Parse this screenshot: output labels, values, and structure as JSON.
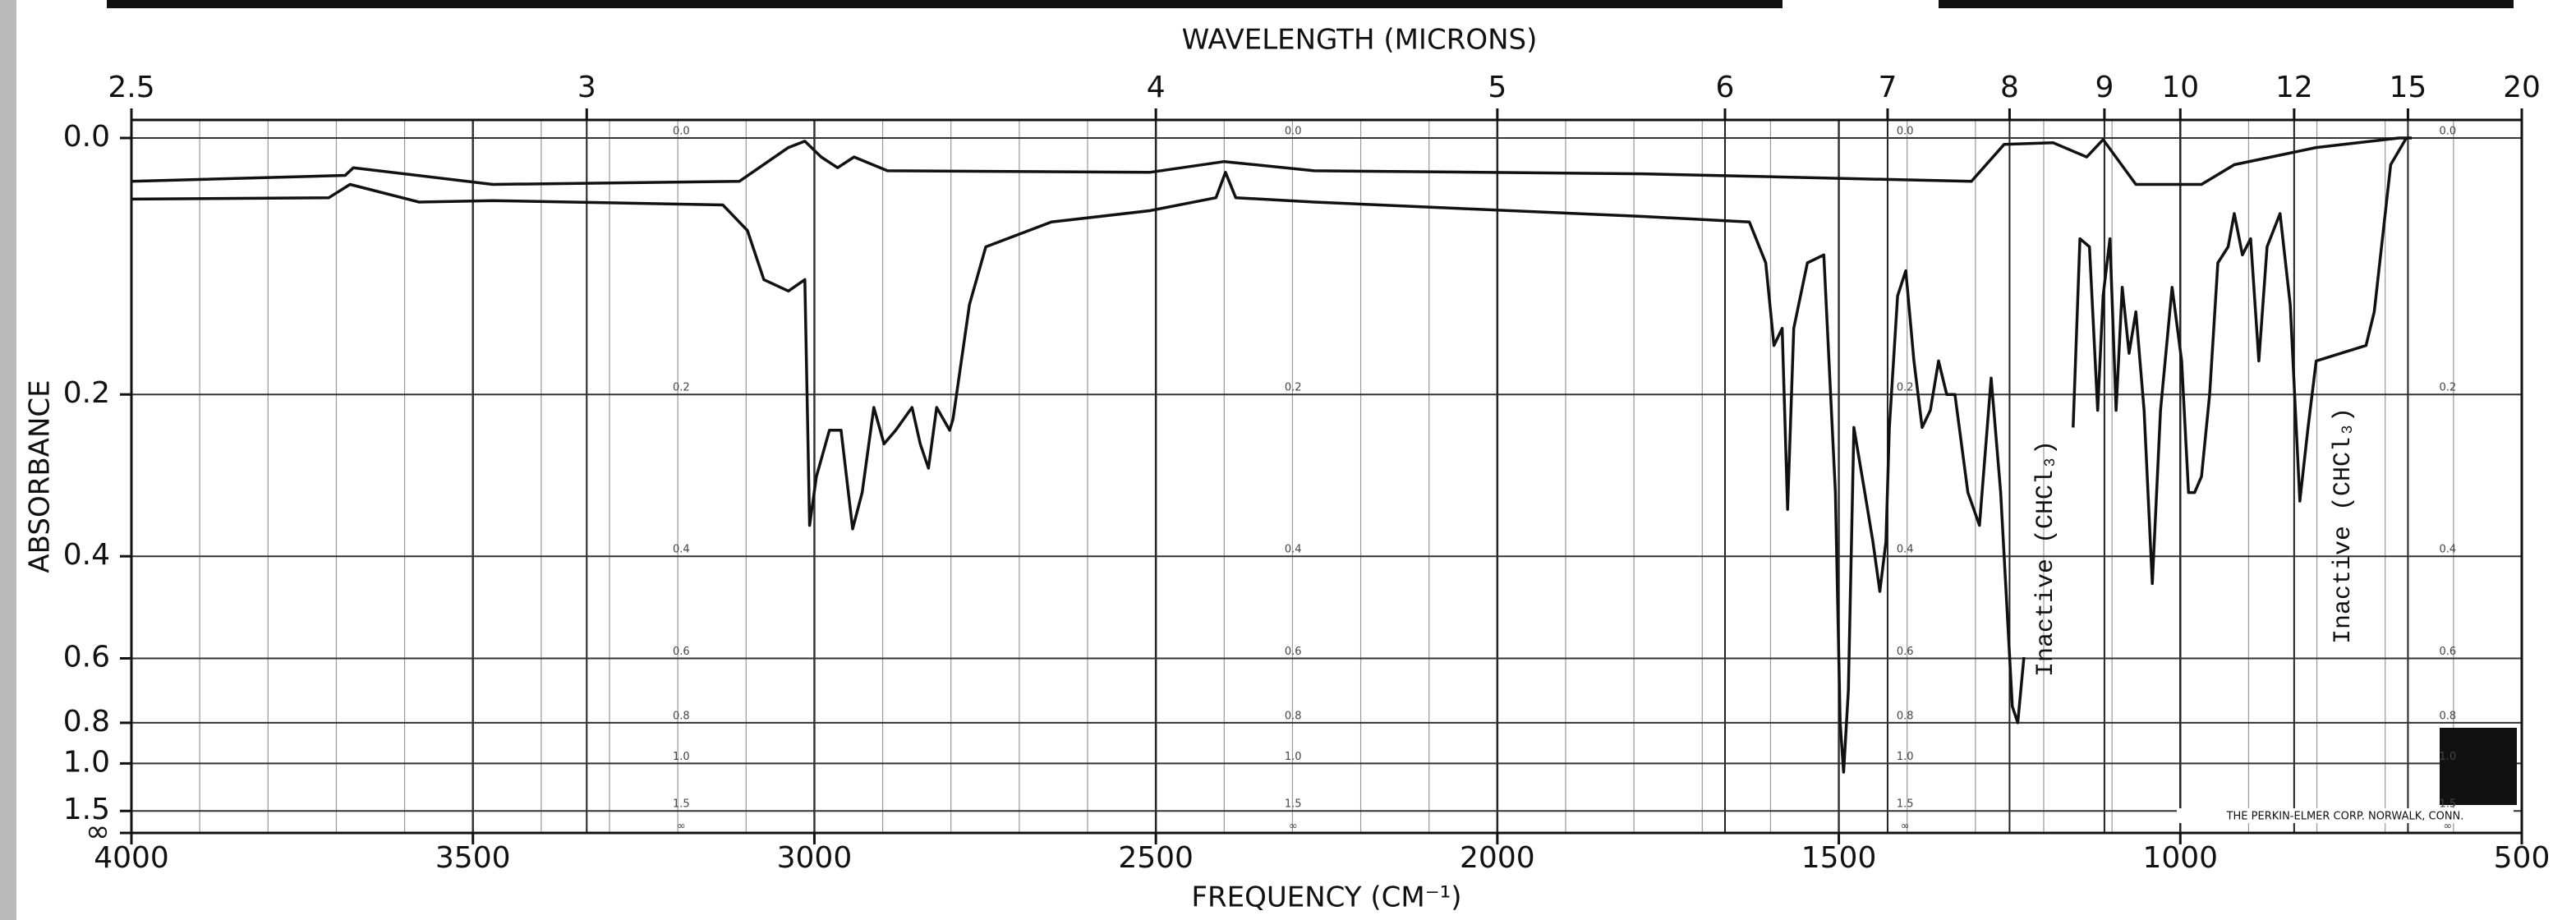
{
  "chart_data": {
    "type": "line",
    "x2label": "WAVELENGTH (MICRONS)",
    "xlabel": "FREQUENCY (CM⁻¹)",
    "ylabel": "ABSORBANCE",
    "xlim": [
      4000,
      500
    ],
    "xticks": [
      4000,
      3500,
      3000,
      2500,
      2000,
      1500,
      1000,
      500
    ],
    "x_minor_step": 100,
    "x2_scale": "reciprocal",
    "x2ticks": [
      2.5,
      3,
      4,
      5,
      6,
      7,
      8,
      9,
      10,
      12,
      15,
      20
    ],
    "y_scale": "transmittance",
    "ylim": [
      0.0,
      {
        "value": null,
        "label": "∞"
      }
    ],
    "yticks": [
      {
        "value": 0.0,
        "label": "0.0"
      },
      0.2,
      0.4,
      0.6,
      0.8,
      {
        "value": 1.0,
        "label": "1.0"
      },
      1.5,
      {
        "value": null,
        "label": "∞"
      }
    ],
    "grid": true,
    "series": [
      {
        "color": "#111111",
        "x": [
          4000,
          3687,
          3675,
          3471,
          3110,
          3038,
          3014,
          2990,
          2966,
          2942,
          2893,
          2509,
          2400,
          2268,
          1787,
          1306,
          1258,
          1186,
          1137,
          1113,
          1065,
          969,
          921,
          801,
          680,
          661
        ],
        "values": [
          0.028,
          0.024,
          0.019,
          0.03,
          0.028,
          0.006,
          0.002,
          0.012,
          0.019,
          0.012,
          0.021,
          0.022,
          0.015,
          0.021,
          0.023,
          0.028,
          0.004,
          0.003,
          0.012,
          0.001,
          0.03,
          0.03,
          0.017,
          0.006,
          0.0,
          0.0
        ]
      },
      {
        "color": "#111111",
        "x": [
          4000,
          3711,
          3680,
          3579,
          3471,
          3134,
          3098,
          3074,
          3038,
          3014,
          3007,
          2997,
          2978,
          2961,
          2944,
          2930,
          2913,
          2898,
          2881,
          2857,
          2845,
          2833,
          2821,
          2802,
          2797,
          2773,
          2749,
          2653,
          2509,
          2412,
          2398,
          2383,
          2268,
          2028,
          1787,
          1631,
          1607,
          1595,
          1583,
          1575,
          1566,
          1546,
          1522,
          1505,
          1498,
          1493,
          1486,
          1478,
          1462,
          1450,
          1440,
          1431,
          1426,
          1414,
          1402,
          1390,
          1378,
          1366,
          1354,
          1342,
          1330,
          1311,
          1294,
          1277,
          1263,
          1246,
          1238,
          1229,
          1200,
          1157,
          1147,
          1133,
          1121,
          1113,
          1103,
          1094,
          1085,
          1075,
          1065,
          1053,
          1041,
          1029,
          1012,
          998,
          988,
          979,
          969,
          957,
          945,
          930,
          921,
          909,
          897,
          885,
          873,
          854,
          839,
          825,
          813,
          801,
          728,
          716,
          692,
          669
        ],
        "values": [
          0.04,
          0.039,
          0.03,
          0.042,
          0.041,
          0.044,
          0.062,
          0.099,
          0.108,
          0.099,
          0.354,
          0.29,
          0.237,
          0.237,
          0.359,
          0.31,
          0.213,
          0.252,
          0.237,
          0.213,
          0.252,
          0.28,
          0.213,
          0.237,
          0.225,
          0.119,
          0.074,
          0.056,
          0.048,
          0.039,
          0.022,
          0.039,
          0.042,
          0.047,
          0.052,
          0.056,
          0.086,
          0.154,
          0.139,
          0.332,
          0.139,
          0.086,
          0.08,
          0.31,
          0.8,
          1.058,
          0.687,
          0.234,
          0.31,
          0.378,
          0.459,
          0.378,
          0.234,
          0.112,
          0.092,
          0.168,
          0.234,
          0.216,
          0.168,
          0.2,
          0.2,
          0.31,
          0.354,
          0.184,
          0.31,
          0.74,
          0.8,
          0.597,
          null,
          0.234,
          0.068,
          0.074,
          0.216,
          0.112,
          0.068,
          0.216,
          0.105,
          0.161,
          0.125,
          0.216,
          0.445,
          0.216,
          0.105,
          0.168,
          0.31,
          0.31,
          0.29,
          0.2,
          0.086,
          0.074,
          0.05,
          0.08,
          0.068,
          0.168,
          0.074,
          0.05,
          0.119,
          0.321,
          0.234,
          0.168,
          0.154,
          0.125,
          0.017,
          0.0
        ]
      }
    ],
    "annotations": [
      "Inactive (CHCl₃)",
      "Inactive (CHCl₃)"
    ],
    "footer": "THE PERKIN-ELMER CORP. NORWALK, CONN."
  }
}
